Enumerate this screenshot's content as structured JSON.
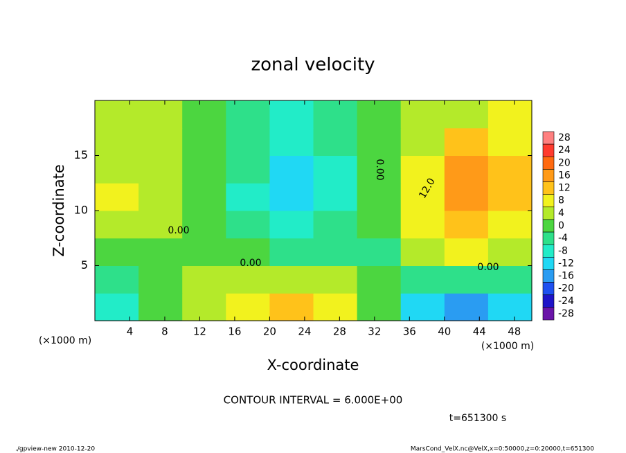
{
  "chart_data": {
    "type": "heatmap",
    "title": "zonal velocity",
    "x_label": "X-coordinate",
    "y_label": "Z-coordinate",
    "x_unit_label": "(×1000 m)",
    "x_unit_label_right": "(×1000 m)",
    "xlim": [
      0,
      50
    ],
    "ylim": [
      0,
      20
    ],
    "xticks": [
      4,
      8,
      12,
      16,
      20,
      24,
      28,
      32,
      36,
      40,
      44,
      48
    ],
    "yticks": [
      5,
      10,
      15
    ],
    "x_bins": [
      0,
      5,
      10,
      15,
      20,
      25,
      30,
      35,
      40,
      45,
      50
    ],
    "y_bins": [
      0,
      2.5,
      5,
      7.5,
      10,
      12.5,
      15,
      17.5,
      20
    ],
    "z": [
      [
        -7,
        1,
        3,
        9,
        13,
        8,
        -2,
        -12,
        -16,
        -13
      ],
      [
        -3,
        -1,
        2,
        3,
        3,
        3,
        -2,
        -3,
        -6,
        -5
      ],
      [
        1,
        1,
        0,
        -2,
        -4,
        -3,
        -3,
        4,
        6,
        5
      ],
      [
        5,
        3,
        1,
        -4,
        -7,
        -4,
        -2,
        7,
        10,
        9
      ],
      [
        6,
        3,
        1,
        -7,
        -13,
        -7,
        -2,
        8,
        14,
        12
      ],
      [
        5,
        3,
        1,
        -6,
        -11,
        -7,
        -1,
        6,
        14,
        13
      ],
      [
        4,
        3,
        1,
        -6,
        -9,
        -6,
        -1,
        4,
        11,
        9
      ],
      [
        3,
        2,
        0,
        -5,
        -9,
        -5,
        0,
        3,
        5,
        6
      ]
    ],
    "colorbar": {
      "levels": [
        28,
        24,
        20,
        16,
        12,
        8,
        4,
        0,
        -4,
        -8,
        -12,
        -16,
        -20,
        -24,
        -28
      ],
      "colors": [
        "#ff8080",
        "#ff3b2e",
        "#ff6a10",
        "#ff9a18",
        "#ffc21a",
        "#f2f21e",
        "#b4ea2a",
        "#4cd640",
        "#2ee08a",
        "#22ecc8",
        "#20d8f4",
        "#2a9cf2",
        "#1e50f0",
        "#1e14c8",
        "#6a14a8"
      ]
    },
    "contour_labels": [
      "0.00",
      "0.00",
      "0.00",
      "12.0",
      "0.00"
    ],
    "contour_interval": "CONTOUR INTERVAL = 6.000E+00",
    "time_label": "t=651300 s",
    "footer_left": "./gpview-new  2010-12-20",
    "footer_right": "MarsCond_VelX.nc@VelX,x=0:50000,z=0:20000,t=651300"
  }
}
